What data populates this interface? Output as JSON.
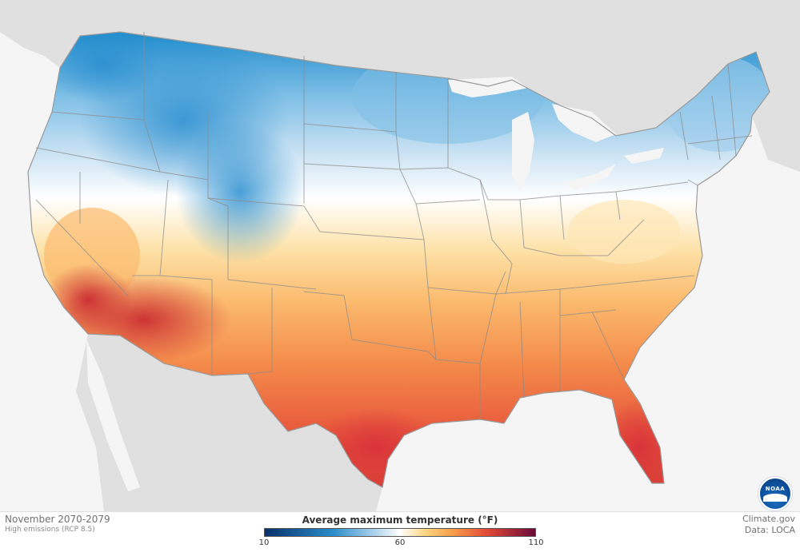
{
  "map": {
    "period": "November 2070-2079",
    "scenario": "High emissions (RCP 8.5)",
    "source_credit": "Climate.gov",
    "data_credit": "Data: LOCA",
    "logo_text": "NOAA",
    "colors": {
      "background": "#f5f5f5",
      "land_outside": "#e0e0e0",
      "water": "#f5f5f5",
      "state_border": "#8c8c8c"
    }
  },
  "legend": {
    "title": "Average maximum temperature (°F)",
    "ticks": [
      "10",
      "60",
      "110"
    ],
    "min": 10,
    "max": 110,
    "stops": [
      {
        "value": 10,
        "color": "#08306b"
      },
      {
        "value": 35,
        "color": "#2a8cca"
      },
      {
        "value": 50,
        "color": "#a9cfea"
      },
      {
        "value": 60,
        "color": "#ffffff"
      },
      {
        "value": 70,
        "color": "#fdd27a"
      },
      {
        "value": 80,
        "color": "#f89a4a"
      },
      {
        "value": 92,
        "color": "#e24a36"
      },
      {
        "value": 110,
        "color": "#6b0a3a"
      }
    ]
  }
}
